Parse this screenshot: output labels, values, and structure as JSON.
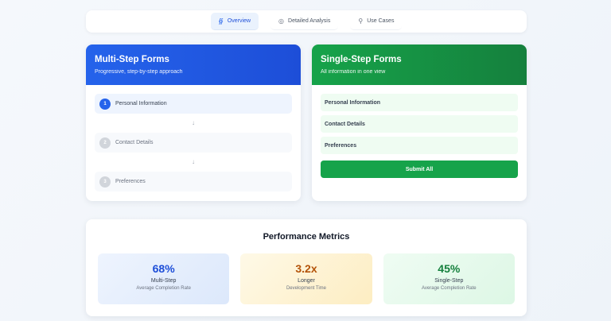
{
  "tabs": [
    {
      "label": "Overview",
      "icon": "chart-icon",
      "glyph": "⫽",
      "active": true
    },
    {
      "label": "Detailed Analysis",
      "icon": "target-icon",
      "glyph": "◎",
      "active": false
    },
    {
      "label": "Use Cases",
      "icon": "lightbulb-icon",
      "glyph": "♀",
      "active": false
    }
  ],
  "multi": {
    "title": "Multi-Step Forms",
    "subtitle": "Progressive, step-by-step approach",
    "arrow": "↓",
    "steps": [
      {
        "num": "1",
        "label": "Personal Information"
      },
      {
        "num": "2",
        "label": "Contact Details"
      },
      {
        "num": "3",
        "label": "Preferences"
      }
    ]
  },
  "single": {
    "title": "Single-Step Forms",
    "subtitle": "All information in one view",
    "fields": [
      "Personal Information",
      "Contact Details",
      "Preferences"
    ],
    "submit_label": "Submit All"
  },
  "metrics": {
    "title": "Performance Metrics",
    "items": [
      {
        "value": "68%",
        "label": "Multi-Step",
        "desc": "Average Completion Rate",
        "color": "#1d4ed8"
      },
      {
        "value": "3.2x",
        "label": "Longer",
        "desc": "Development Time",
        "color": "#b45309"
      },
      {
        "value": "45%",
        "label": "Single-Step",
        "desc": "Average Completion Rate",
        "color": "#15803d"
      }
    ]
  },
  "colors": {
    "multi_accent": "#2563eb",
    "single_accent": "#16a34a"
  }
}
